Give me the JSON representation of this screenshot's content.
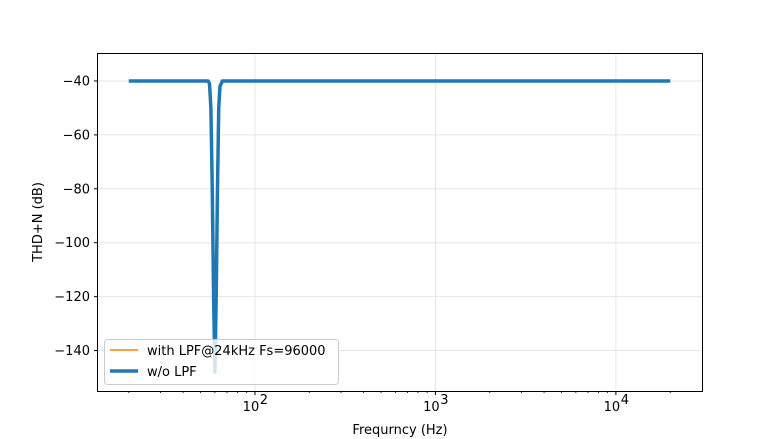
{
  "chart_data": {
    "type": "line",
    "title": "",
    "xlabel": "Frequrncy (Hz)",
    "ylabel": "THD+N (dB)",
    "xscale": "log",
    "xlim": [
      13.5,
      30000
    ],
    "ylim": [
      -155,
      -30
    ],
    "grid": true,
    "legend_position": "lower-left",
    "x_ticks": [
      {
        "value": 100,
        "base": "10",
        "exp": "2"
      },
      {
        "value": 1000,
        "base": "10",
        "exp": "3"
      },
      {
        "value": 10000,
        "base": "10",
        "exp": "4"
      }
    ],
    "y_ticks": [
      -40,
      -60,
      -80,
      -100,
      -120,
      -140
    ],
    "y_tick_labels": [
      "−40",
      "−60",
      "−80",
      "−100",
      "−120",
      "−140"
    ],
    "series": [
      {
        "name": "with LPF@24kHz Fs=96000",
        "color": "#ff7f0e",
        "width": "thin",
        "x": [
          20,
          55,
          56,
          57,
          58,
          59,
          60,
          61,
          62,
          63,
          64,
          66,
          70,
          20000
        ],
        "y": [
          -40,
          -40,
          -41,
          -50,
          -80,
          -120,
          -148,
          -120,
          -80,
          -50,
          -42,
          -40,
          -40,
          -40
        ]
      },
      {
        "name": "w/o LPF",
        "color": "#1f77b4",
        "width": "thick",
        "x": [
          20,
          55,
          56,
          57,
          58,
          59,
          60,
          61,
          62,
          63,
          64,
          66,
          70,
          20000
        ],
        "y": [
          -40,
          -40,
          -41,
          -50,
          -80,
          -120,
          -148,
          -120,
          -80,
          -50,
          -42,
          -40,
          -40,
          -40
        ]
      }
    ]
  }
}
